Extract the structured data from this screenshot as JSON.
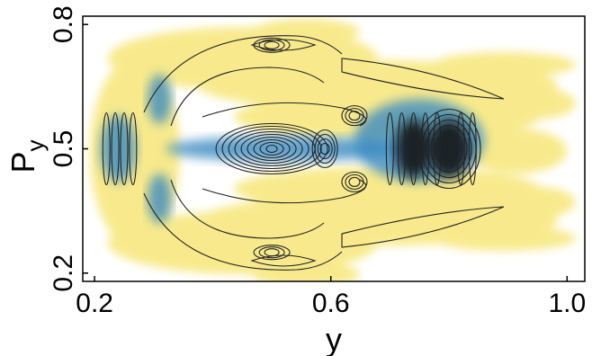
{
  "chart_data": {
    "type": "heatmap",
    "xlabel": "y",
    "ylabel": "P",
    "ylabel_subscript": "y",
    "x_ticks": [
      {
        "value": 0.2,
        "label": "0.2"
      },
      {
        "value": 0.6,
        "label": "0.6"
      },
      {
        "value": 1.0,
        "label": "1.0"
      }
    ],
    "y_ticks": [
      {
        "value": 0.2,
        "label": "0.2"
      },
      {
        "value": 0.5,
        "label": "0.5"
      },
      {
        "value": 0.8,
        "label": "0.8"
      }
    ],
    "xlim": [
      0.18,
      1.03
    ],
    "ylim": [
      0.18,
      0.82
    ],
    "grid": false,
    "colors": {
      "background_density": "#f8ea8c",
      "positive_density": "#3a8ac0",
      "peak_density": "#0a0a0a",
      "contour_lines": "#222222"
    },
    "density_blobs": [
      {
        "x": 0.24,
        "y": 0.5,
        "rx": 0.03,
        "ry": 0.08,
        "level": "blue"
      },
      {
        "x": 0.31,
        "y": 0.62,
        "rx": 0.02,
        "ry": 0.06,
        "level": "blue"
      },
      {
        "x": 0.31,
        "y": 0.38,
        "rx": 0.02,
        "ry": 0.06,
        "level": "blue"
      },
      {
        "x": 0.52,
        "y": 0.5,
        "rx": 0.2,
        "ry": 0.03,
        "level": "blue"
      },
      {
        "x": 0.75,
        "y": 0.52,
        "rx": 0.11,
        "ry": 0.1,
        "level": "blue"
      },
      {
        "x": 0.74,
        "y": 0.5,
        "rx": 0.03,
        "ry": 0.07,
        "level": "dark"
      },
      {
        "x": 0.8,
        "y": 0.5,
        "rx": 0.035,
        "ry": 0.07,
        "level": "dark"
      }
    ],
    "contour_centers": [
      {
        "x": 0.5,
        "y": 0.5
      },
      {
        "x": 0.59,
        "y": 0.5
      },
      {
        "x": 0.8,
        "y": 0.5
      },
      {
        "x": 0.64,
        "y": 0.58
      },
      {
        "x": 0.64,
        "y": 0.42
      },
      {
        "x": 0.5,
        "y": 0.75
      },
      {
        "x": 0.5,
        "y": 0.25
      }
    ]
  }
}
